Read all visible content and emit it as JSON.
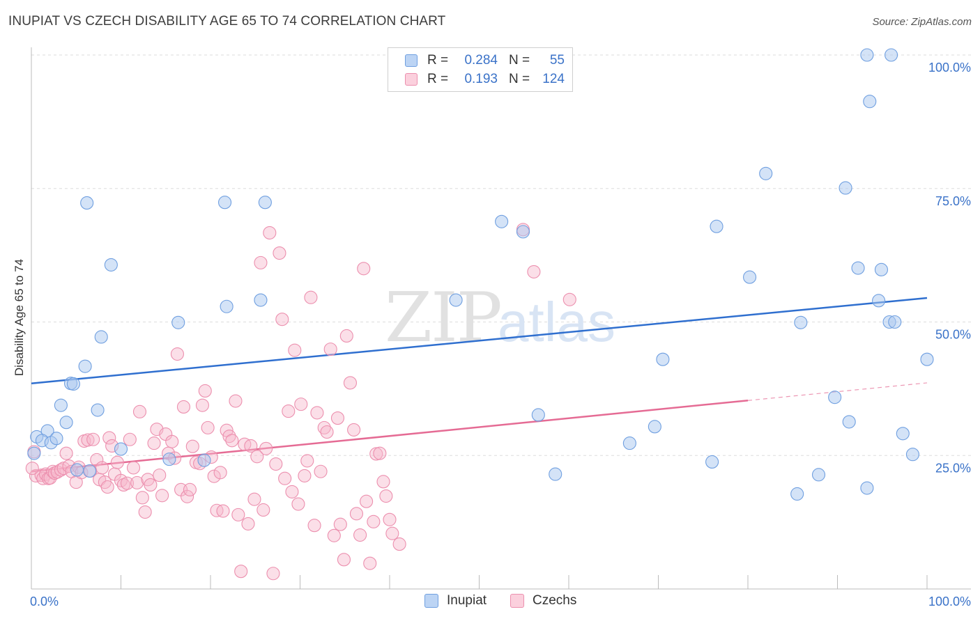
{
  "title": "INUPIAT VS CZECH DISABILITY AGE 65 TO 74 CORRELATION CHART",
  "source": "Source: ZipAtlas.com",
  "watermark": {
    "part1": "ZIP",
    "part2": "atlas"
  },
  "colors": {
    "blue_fill": "#a9c7f0",
    "blue_stroke": "#6f9fe0",
    "blue_line": "#2f6fcf",
    "pink_fill": "#f6b8cb",
    "pink_stroke": "#ec8fae",
    "pink_line": "#e56b94",
    "axis_text": "#3a72c8"
  },
  "legend": {
    "rows": [
      {
        "r_label": "R =",
        "r_value": "0.284",
        "n_label": "N =",
        "n_value": "55",
        "series": "Inupiat"
      },
      {
        "r_label": "R =",
        "r_value": "0.193",
        "n_label": "N =",
        "n_value": "124",
        "series": "Czechs"
      }
    ]
  },
  "bottom_legend": {
    "items": [
      "Inupiat",
      "Czechs"
    ]
  },
  "chart_data": {
    "type": "scatter",
    "title": "INUPIAT VS CZECH DISABILITY AGE 65 TO 74 CORRELATION CHART",
    "xlabel": "",
    "ylabel": "Disability Age 65 to 74",
    "xlim": [
      0,
      100
    ],
    "ylim": [
      0,
      100
    ],
    "x_tick_labels": [
      "0.0%",
      "100.0%"
    ],
    "y_tick_labels": [
      "25.0%",
      "50.0%",
      "75.0%",
      "100.0%"
    ],
    "y_ticks": [
      25,
      50,
      75,
      100
    ],
    "grid": true,
    "series": [
      {
        "name": "Inupiat",
        "color": "blue",
        "trend": {
          "x": [
            0,
            100
          ],
          "y": [
            38.5,
            54.5
          ]
        },
        "points": [
          [
            0.6,
            28.5
          ],
          [
            1.8,
            29.6
          ],
          [
            1.2,
            27.8
          ],
          [
            2.2,
            27.4
          ],
          [
            2.8,
            28.2
          ],
          [
            3.3,
            34.4
          ],
          [
            3.9,
            31.2
          ],
          [
            4.4,
            38.5
          ],
          [
            4.7,
            38.4
          ],
          [
            5.1,
            22.3
          ],
          [
            6.0,
            41.7
          ],
          [
            6.2,
            72.3
          ],
          [
            6.5,
            22.1
          ],
          [
            7.4,
            33.5
          ],
          [
            7.8,
            47.2
          ],
          [
            8.9,
            60.7
          ],
          [
            10.0,
            26.2
          ],
          [
            15.4,
            24.3
          ],
          [
            16.4,
            49.9
          ],
          [
            19.3,
            24.1
          ],
          [
            21.6,
            72.4
          ],
          [
            21.8,
            52.9
          ],
          [
            25.6,
            54.1
          ],
          [
            26.1,
            72.4
          ],
          [
            47.4,
            54.1
          ],
          [
            52.5,
            68.8
          ],
          [
            54.9,
            66.9
          ],
          [
            56.6,
            32.6
          ],
          [
            58.5,
            21.5
          ],
          [
            66.8,
            27.3
          ],
          [
            69.6,
            30.4
          ],
          [
            70.5,
            43.0
          ],
          [
            76.0,
            23.8
          ],
          [
            76.5,
            67.9
          ],
          [
            80.2,
            58.4
          ],
          [
            82.0,
            77.8
          ],
          [
            85.5,
            17.8
          ],
          [
            85.9,
            49.9
          ],
          [
            87.9,
            21.4
          ],
          [
            89.7,
            35.9
          ],
          [
            90.9,
            75.1
          ],
          [
            91.3,
            31.3
          ],
          [
            92.3,
            60.1
          ],
          [
            93.3,
            18.9
          ],
          [
            93.3,
            100.0
          ],
          [
            93.6,
            91.3
          ],
          [
            94.6,
            54.0
          ],
          [
            94.9,
            59.8
          ],
          [
            95.8,
            50.0
          ],
          [
            96.0,
            100.0
          ],
          [
            96.4,
            50.0
          ],
          [
            97.3,
            29.1
          ],
          [
            98.4,
            25.2
          ],
          [
            100.0,
            43.0
          ],
          [
            0.3,
            25.4
          ]
        ]
      },
      {
        "name": "Czechs",
        "color": "pink",
        "trend": {
          "x": [
            0,
            80
          ],
          "y": [
            22.0,
            35.3
          ]
        },
        "trend_dashed": {
          "x": [
            80,
            100
          ],
          "y": [
            35.3,
            38.6
          ]
        },
        "points": [
          [
            0.3,
            25.7
          ],
          [
            0.5,
            21.2
          ],
          [
            1.1,
            21.3
          ],
          [
            1.3,
            20.7
          ],
          [
            1.6,
            21.5
          ],
          [
            1.9,
            20.7
          ],
          [
            2.1,
            20.8
          ],
          [
            2.4,
            22.0
          ],
          [
            2.6,
            21.7
          ],
          [
            2.9,
            21.9
          ],
          [
            3.3,
            22.3
          ],
          [
            3.6,
            22.6
          ],
          [
            3.9,
            25.4
          ],
          [
            4.2,
            23.0
          ],
          [
            4.5,
            22.0
          ],
          [
            5.0,
            20.0
          ],
          [
            5.3,
            22.8
          ],
          [
            5.6,
            21.8
          ],
          [
            5.9,
            27.7
          ],
          [
            6.3,
            27.9
          ],
          [
            6.6,
            22.1
          ],
          [
            6.9,
            28.0
          ],
          [
            7.3,
            24.2
          ],
          [
            7.6,
            20.5
          ],
          [
            7.9,
            22.7
          ],
          [
            8.2,
            20.0
          ],
          [
            8.5,
            19.1
          ],
          [
            8.7,
            28.3
          ],
          [
            9.0,
            26.8
          ],
          [
            9.3,
            21.5
          ],
          [
            9.6,
            23.7
          ],
          [
            10.0,
            20.3
          ],
          [
            10.3,
            19.5
          ],
          [
            10.7,
            19.8
          ],
          [
            11.0,
            28.0
          ],
          [
            11.4,
            22.7
          ],
          [
            11.8,
            19.9
          ],
          [
            12.1,
            33.2
          ],
          [
            12.4,
            17.1
          ],
          [
            12.7,
            14.4
          ],
          [
            13.0,
            20.5
          ],
          [
            13.3,
            19.5
          ],
          [
            13.7,
            27.3
          ],
          [
            14.0,
            29.9
          ],
          [
            14.3,
            21.3
          ],
          [
            14.6,
            17.5
          ],
          [
            15.0,
            29.0
          ],
          [
            15.3,
            25.4
          ],
          [
            15.7,
            27.6
          ],
          [
            16.0,
            24.5
          ],
          [
            16.3,
            44.0
          ],
          [
            16.7,
            18.6
          ],
          [
            17.0,
            34.1
          ],
          [
            17.4,
            17.3
          ],
          [
            17.7,
            18.6
          ],
          [
            18.0,
            26.7
          ],
          [
            18.4,
            23.7
          ],
          [
            18.8,
            23.5
          ],
          [
            19.1,
            34.4
          ],
          [
            19.4,
            37.1
          ],
          [
            19.7,
            30.2
          ],
          [
            20.1,
            24.7
          ],
          [
            20.4,
            21.1
          ],
          [
            20.7,
            14.7
          ],
          [
            21.1,
            21.8
          ],
          [
            21.4,
            14.6
          ],
          [
            21.8,
            29.7
          ],
          [
            22.1,
            28.6
          ],
          [
            22.4,
            27.8
          ],
          [
            22.8,
            35.2
          ],
          [
            23.1,
            13.9
          ],
          [
            23.4,
            3.3
          ],
          [
            23.8,
            27.1
          ],
          [
            24.2,
            12.2
          ],
          [
            24.5,
            26.8
          ],
          [
            24.9,
            16.8
          ],
          [
            25.2,
            24.8
          ],
          [
            25.6,
            61.1
          ],
          [
            25.9,
            14.8
          ],
          [
            26.2,
            26.3
          ],
          [
            26.6,
            66.7
          ],
          [
            27.0,
            2.9
          ],
          [
            27.3,
            23.4
          ],
          [
            27.7,
            62.9
          ],
          [
            28.0,
            50.5
          ],
          [
            28.3,
            20.7
          ],
          [
            28.7,
            33.3
          ],
          [
            29.1,
            18.2
          ],
          [
            29.4,
            44.7
          ],
          [
            29.8,
            15.9
          ],
          [
            30.1,
            34.6
          ],
          [
            30.5,
            21.2
          ],
          [
            30.8,
            24.0
          ],
          [
            31.2,
            54.6
          ],
          [
            31.6,
            11.9
          ],
          [
            31.9,
            33.0
          ],
          [
            32.3,
            22.0
          ],
          [
            32.7,
            30.2
          ],
          [
            33.0,
            29.4
          ],
          [
            33.4,
            44.9
          ],
          [
            33.8,
            10.0
          ],
          [
            34.2,
            32.0
          ],
          [
            34.5,
            12.1
          ],
          [
            34.9,
            5.5
          ],
          [
            35.2,
            47.4
          ],
          [
            35.6,
            38.6
          ],
          [
            36.0,
            29.8
          ],
          [
            36.3,
            14.1
          ],
          [
            36.7,
            10.1
          ],
          [
            37.1,
            60.0
          ],
          [
            37.4,
            16.4
          ],
          [
            37.8,
            4.8
          ],
          [
            38.2,
            12.6
          ],
          [
            38.5,
            25.3
          ],
          [
            38.9,
            25.4
          ],
          [
            39.3,
            20.1
          ],
          [
            39.6,
            17.4
          ],
          [
            40.0,
            13.0
          ],
          [
            40.3,
            10.4
          ],
          [
            41.1,
            8.4
          ],
          [
            54.9,
            67.3
          ],
          [
            56.1,
            59.4
          ],
          [
            60.1,
            54.2
          ],
          [
            0.1,
            22.6
          ]
        ]
      }
    ]
  }
}
